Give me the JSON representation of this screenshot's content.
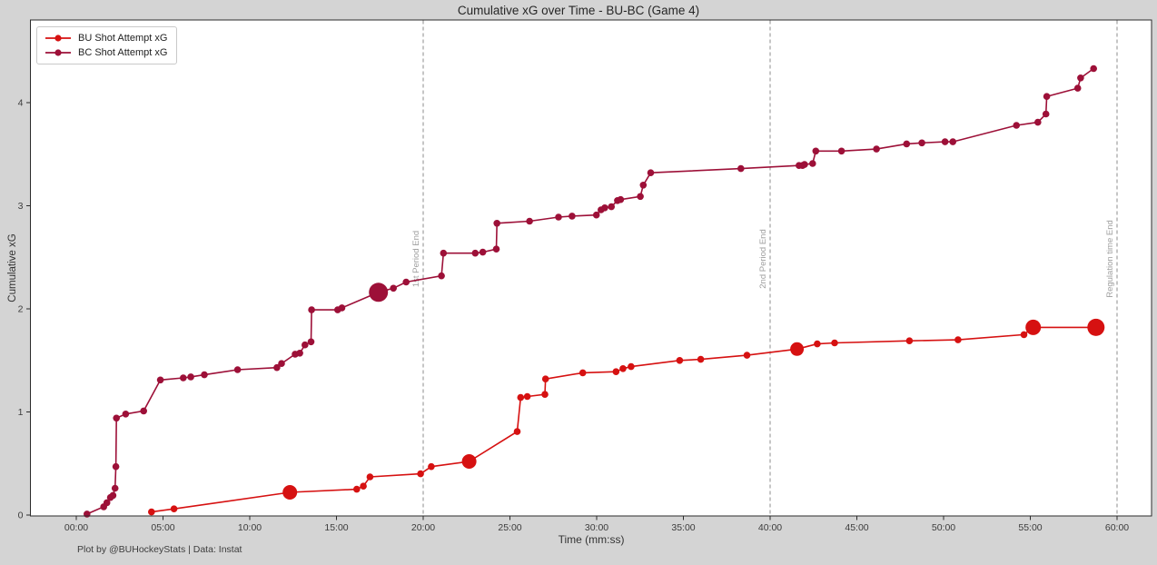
{
  "figure": {
    "title": "Cumulative xG over Time - BU-BC (Game 4)",
    "footer": "Plot by @BUHockeyStats | Data: Instat"
  },
  "chart_data": {
    "type": "line",
    "title": "Cumulative xG over Time - BU-BC (Game 4)",
    "xlabel": "Time (mm:ss)",
    "ylabel": "Cumulative xG",
    "x_tick_labels": [
      "00:00",
      "05:00",
      "10:00",
      "15:00",
      "20:00",
      "25:00",
      "30:00",
      "35:00",
      "40:00",
      "45:00",
      "50:00",
      "55:00",
      "60:00"
    ],
    "y_ticks": [
      0,
      1,
      2,
      3,
      4
    ],
    "x_axis_range_minutes": [
      -2.7,
      62.0
    ],
    "y_axis_range": [
      -0.01,
      4.81
    ],
    "grid": false,
    "legend_position": "upper-left",
    "colors": {
      "period_line": "#8c8c8c",
      "annotation_text": "#9e9e9e",
      "axis": "#2b2b2b",
      "plot_background": "#ffffff",
      "figure_background": "#d4d4d4"
    },
    "annotations": [
      {
        "label": "1st Period End",
        "time": "20:00"
      },
      {
        "label": "2nd Period End",
        "time": "40:00"
      },
      {
        "label": "Regulation time End",
        "time": "60:00"
      }
    ],
    "series": [
      {
        "name": "BU Shot Attempt xG",
        "color": "#d61111",
        "points": [
          {
            "t": "04:20",
            "v": 0.03
          },
          {
            "t": "05:38",
            "v": 0.06
          },
          {
            "t": "12:19",
            "v": 0.22,
            "r": 8
          },
          {
            "t": "16:10",
            "v": 0.25
          },
          {
            "t": "16:33",
            "v": 0.28
          },
          {
            "t": "16:56",
            "v": 0.37
          },
          {
            "t": "19:51",
            "v": 0.4
          },
          {
            "t": "20:28",
            "v": 0.47
          },
          {
            "t": "22:39",
            "v": 0.52,
            "r": 8
          },
          {
            "t": "25:25",
            "v": 0.81
          },
          {
            "t": "25:37",
            "v": 1.14
          },
          {
            "t": "26:00",
            "v": 1.15
          },
          {
            "t": "27:01",
            "v": 1.17
          },
          {
            "t": "27:03",
            "v": 1.32
          },
          {
            "t": "29:12",
            "v": 1.38
          },
          {
            "t": "31:07",
            "v": 1.39
          },
          {
            "t": "31:31",
            "v": 1.42
          },
          {
            "t": "31:59",
            "v": 1.44
          },
          {
            "t": "34:47",
            "v": 1.5
          },
          {
            "t": "36:00",
            "v": 1.51
          },
          {
            "t": "38:40",
            "v": 1.55
          },
          {
            "t": "41:33",
            "v": 1.61,
            "r": 7.5
          },
          {
            "t": "42:43",
            "v": 1.66
          },
          {
            "t": "43:43",
            "v": 1.67
          },
          {
            "t": "48:02",
            "v": 1.69
          },
          {
            "t": "50:50",
            "v": 1.7
          },
          {
            "t": "54:38",
            "v": 1.75
          },
          {
            "t": "55:10",
            "v": 1.82,
            "r": 8.5
          },
          {
            "t": "58:47",
            "v": 1.82,
            "r": 9.5
          }
        ]
      },
      {
        "name": "BC Shot Attempt xG",
        "color": "#9d1038",
        "points": [
          {
            "t": "00:37",
            "v": 0.01
          },
          {
            "t": "01:35",
            "v": 0.08
          },
          {
            "t": "01:46",
            "v": 0.12
          },
          {
            "t": "01:58",
            "v": 0.17
          },
          {
            "t": "02:07",
            "v": 0.19
          },
          {
            "t": "02:14",
            "v": 0.26
          },
          {
            "t": "02:17",
            "v": 0.47
          },
          {
            "t": "02:19",
            "v": 0.94
          },
          {
            "t": "02:51",
            "v": 0.98
          },
          {
            "t": "03:53",
            "v": 1.01
          },
          {
            "t": "04:51",
            "v": 1.31
          },
          {
            "t": "06:10",
            "v": 1.33
          },
          {
            "t": "06:36",
            "v": 1.34
          },
          {
            "t": "07:23",
            "v": 1.36
          },
          {
            "t": "09:18",
            "v": 1.41
          },
          {
            "t": "11:34",
            "v": 1.43
          },
          {
            "t": "11:50",
            "v": 1.47
          },
          {
            "t": "12:37",
            "v": 1.56
          },
          {
            "t": "12:53",
            "v": 1.57
          },
          {
            "t": "13:11",
            "v": 1.65
          },
          {
            "t": "13:32",
            "v": 1.68
          },
          {
            "t": "13:34",
            "v": 1.99
          },
          {
            "t": "15:04",
            "v": 1.99
          },
          {
            "t": "15:19",
            "v": 2.01
          },
          {
            "t": "17:25",
            "v": 2.16,
            "r": 10.5
          },
          {
            "t": "18:17",
            "v": 2.2
          },
          {
            "t": "19:01",
            "v": 2.26
          },
          {
            "t": "21:03",
            "v": 2.32
          },
          {
            "t": "21:10",
            "v": 2.54
          },
          {
            "t": "23:00",
            "v": 2.54
          },
          {
            "t": "23:26",
            "v": 2.55
          },
          {
            "t": "24:13",
            "v": 2.58
          },
          {
            "t": "24:15",
            "v": 2.83
          },
          {
            "t": "26:08",
            "v": 2.85
          },
          {
            "t": "27:48",
            "v": 2.89
          },
          {
            "t": "28:35",
            "v": 2.9
          },
          {
            "t": "29:59",
            "v": 2.91
          },
          {
            "t": "30:15",
            "v": 2.96
          },
          {
            "t": "30:28",
            "v": 2.98
          },
          {
            "t": "30:51",
            "v": 2.99
          },
          {
            "t": "31:12",
            "v": 3.05
          },
          {
            "t": "31:23",
            "v": 3.06
          },
          {
            "t": "32:31",
            "v": 3.09
          },
          {
            "t": "32:41",
            "v": 3.2
          },
          {
            "t": "33:07",
            "v": 3.32
          },
          {
            "t": "38:19",
            "v": 3.36
          },
          {
            "t": "41:40",
            "v": 3.39
          },
          {
            "t": "41:52",
            "v": 3.39
          },
          {
            "t": "41:59",
            "v": 3.4
          },
          {
            "t": "42:27",
            "v": 3.41
          },
          {
            "t": "42:38",
            "v": 3.53
          },
          {
            "t": "44:07",
            "v": 3.53
          },
          {
            "t": "46:08",
            "v": 3.55
          },
          {
            "t": "47:52",
            "v": 3.6
          },
          {
            "t": "48:45",
            "v": 3.61
          },
          {
            "t": "50:05",
            "v": 3.62
          },
          {
            "t": "50:32",
            "v": 3.62
          },
          {
            "t": "54:12",
            "v": 3.78
          },
          {
            "t": "55:26",
            "v": 3.81
          },
          {
            "t": "55:54",
            "v": 3.89
          },
          {
            "t": "55:57",
            "v": 4.06
          },
          {
            "t": "57:44",
            "v": 4.14
          },
          {
            "t": "57:54",
            "v": 4.24
          },
          {
            "t": "58:39",
            "v": 4.33
          }
        ]
      }
    ]
  }
}
